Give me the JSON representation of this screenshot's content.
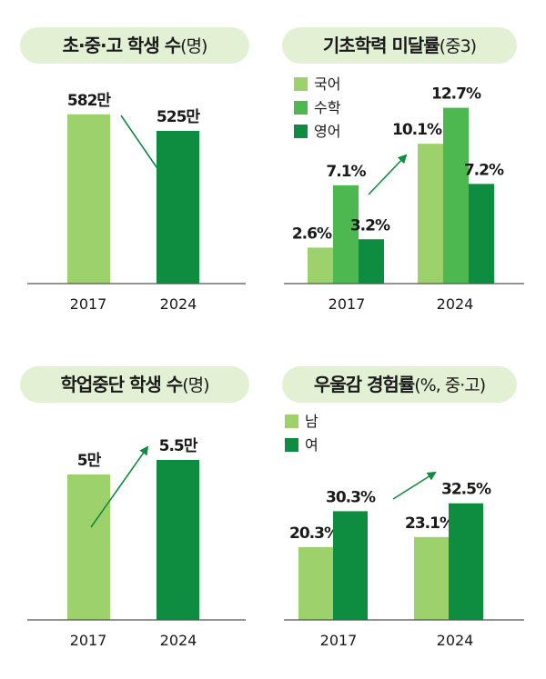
{
  "colors": {
    "light": "#9dd16b",
    "mid": "#4cb84f",
    "dark": "#0e8c3f",
    "pill": "#e2f0d3",
    "axis": "#555555",
    "text": "#1a1a1a",
    "arrow": "#0e8c3f"
  },
  "chart_data": [
    {
      "type": "bar",
      "title": "초·중·고 학생 수",
      "title_suffix": "(명)",
      "categories": [
        "2017",
        "2024"
      ],
      "values": [
        582,
        525
      ],
      "value_labels": [
        "582만",
        "525만"
      ],
      "bar_colors": [
        "light",
        "dark"
      ],
      "ylim": [
        0,
        600
      ]
    },
    {
      "type": "bar",
      "title": "기초학력 미달률",
      "title_suffix": "(중3)",
      "categories": [
        "2017",
        "2024"
      ],
      "legend": [
        "국어",
        "수학",
        "영어"
      ],
      "legend_placement": "top-left",
      "series": [
        {
          "name": "국어",
          "values": [
            2.6,
            10.1
          ],
          "labels": [
            "2.6%",
            "10.1%"
          ],
          "color": "light"
        },
        {
          "name": "수학",
          "values": [
            7.1,
            12.7
          ],
          "labels": [
            "7.1%",
            "12.7%"
          ],
          "color": "mid"
        },
        {
          "name": "영어",
          "values": [
            3.2,
            7.2
          ],
          "labels": [
            "3.2%",
            "7.2%"
          ],
          "color": "dark"
        }
      ],
      "ylim": [
        0,
        13
      ]
    },
    {
      "type": "bar",
      "title": "학업중단 학생 수",
      "title_suffix": "(명)",
      "categories": [
        "2017",
        "2024"
      ],
      "values": [
        5,
        5.5
      ],
      "value_labels": [
        "5만",
        "5.5만"
      ],
      "bar_colors": [
        "light",
        "dark"
      ],
      "ylim": [
        0,
        6
      ]
    },
    {
      "type": "bar",
      "title": "우울감 경험률",
      "title_suffix": "(%, 중·고)",
      "categories": [
        "2017",
        "2024"
      ],
      "legend": [
        "남",
        "여"
      ],
      "legend_placement": "top-left",
      "series": [
        {
          "name": "남",
          "values": [
            20.3,
            23.1
          ],
          "labels": [
            "20.3%",
            "23.1%"
          ],
          "color": "light"
        },
        {
          "name": "여",
          "values": [
            30.3,
            32.5
          ],
          "labels": [
            "30.3%",
            "32.5%"
          ],
          "color": "dark"
        }
      ],
      "ylim": [
        0,
        38
      ]
    }
  ]
}
